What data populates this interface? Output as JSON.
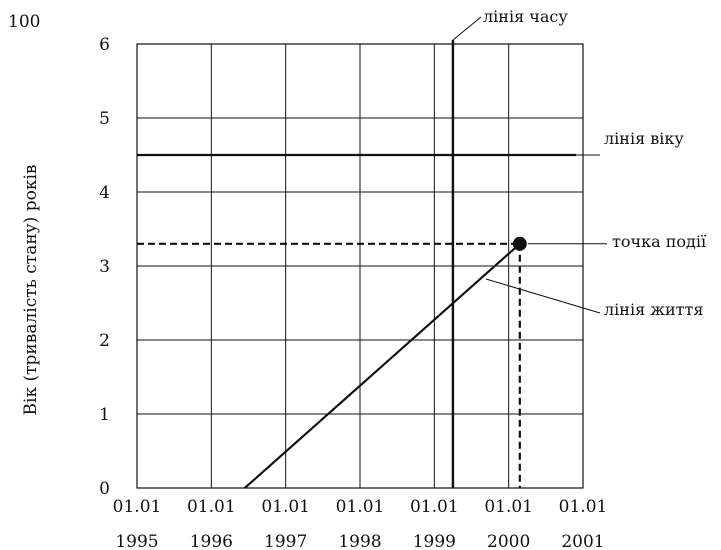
{
  "corner_label": "100",
  "y_axis_label": "Вік (тривалість стану) років",
  "x_ticks": [
    {
      "date": "01.01",
      "year": "1995"
    },
    {
      "date": "01.01",
      "year": "1996"
    },
    {
      "date": "01.01",
      "year": "1997"
    },
    {
      "date": "01.01",
      "year": "1998"
    },
    {
      "date": "01.01",
      "year": "1999"
    },
    {
      "date": "01.01",
      "year": "2000"
    },
    {
      "date": "01.01",
      "year": "2001"
    }
  ],
  "y_ticks": [
    "0",
    "1",
    "2",
    "3",
    "4",
    "5",
    "6"
  ],
  "annotations": {
    "time_line": "лінія часу",
    "age_line": "лінія віку",
    "event_point": "точка події",
    "life_line": "лінія життя"
  },
  "chart_data": {
    "type": "line",
    "x_range": [
      1995,
      2001
    ],
    "y_range": [
      0,
      6
    ],
    "grid": true,
    "life_line": {
      "x": [
        1996.45,
        2000.15
      ],
      "y": [
        0,
        3.3
      ]
    },
    "age_line": {
      "y": 4.5
    },
    "time_line": {
      "x": 1999.25
    },
    "event_point": {
      "x": 2000.15,
      "y": 3.3
    }
  }
}
